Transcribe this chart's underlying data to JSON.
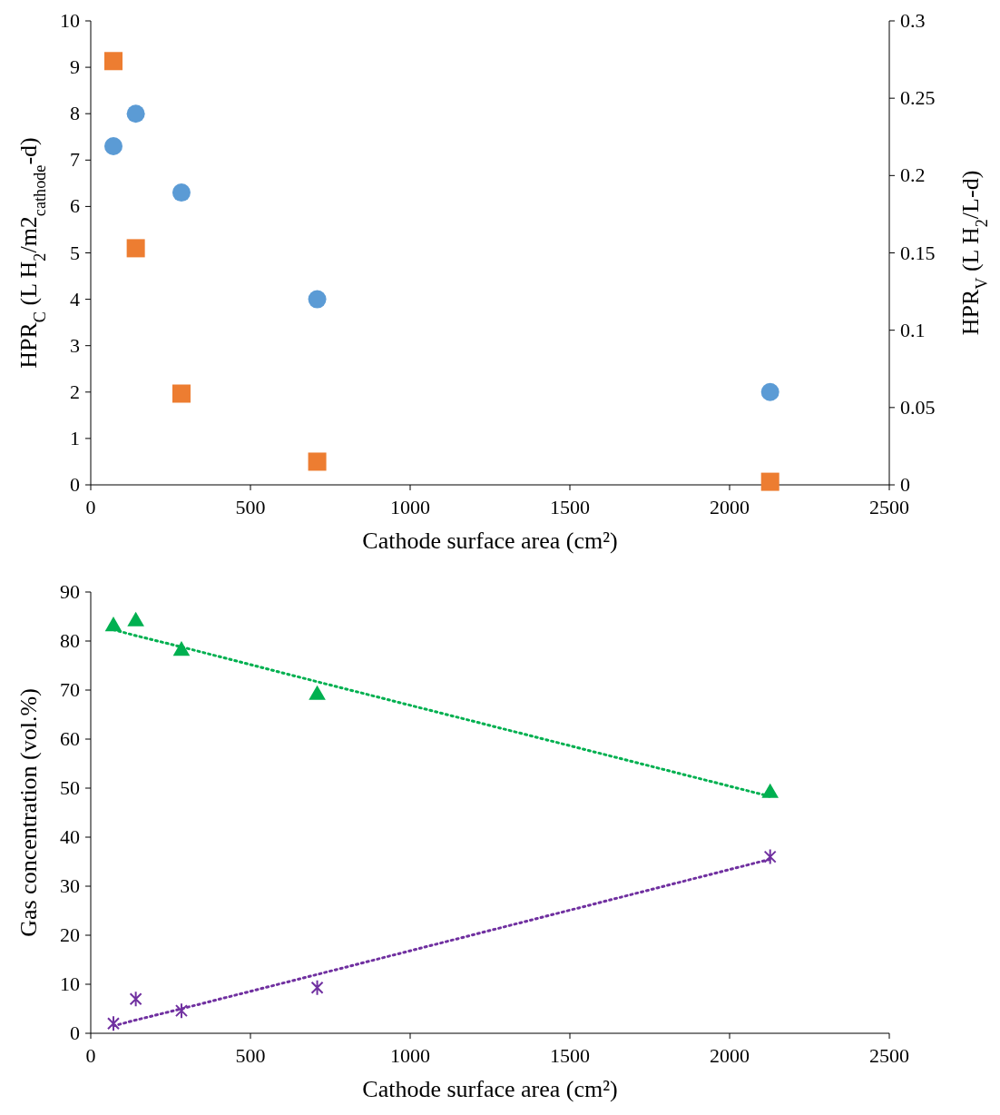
{
  "chart_data": [
    {
      "type": "scatter",
      "xlabel": "Cathode surface area (cm²)",
      "ylabel": "HPR$_{C}$ (L H$_{2}$/m2$_{cathode}$-d)",
      "y2label": "HPR$_{V}$ (L H$_{2}$/L-d)",
      "x": [
        71,
        141,
        284,
        709,
        2127
      ],
      "xlim": [
        0,
        2500
      ],
      "xticks": [
        0,
        500,
        1000,
        1500,
        2000,
        2500
      ],
      "ylim": [
        0,
        10
      ],
      "yticks": [
        0,
        1,
        2,
        3,
        4,
        5,
        6,
        7,
        8,
        9,
        10
      ],
      "y2lim": [
        0,
        0.3
      ],
      "y2ticks": [
        0,
        0.05,
        0.1,
        0.15,
        0.2,
        0.25,
        0.3
      ],
      "grid": false,
      "series": [
        {
          "color": "#5b9bd5",
          "marker": "circle",
          "values": [
            7.3,
            8.0,
            6.3,
            4.0,
            2.0
          ]
        },
        {
          "color": "#ed7d31",
          "marker": "square",
          "axis": "y2",
          "values": [
            0.274,
            0.153,
            0.059,
            0.015,
            0.002
          ]
        }
      ]
    },
    {
      "type": "scatter",
      "xlabel": "Cathode surface area (cm²)",
      "ylabel": "Gas concentration (vol.%)",
      "x": [
        71,
        141,
        284,
        709,
        2127
      ],
      "xlim": [
        0,
        2500
      ],
      "xticks": [
        0,
        500,
        1000,
        1500,
        2000,
        2500
      ],
      "ylim": [
        0,
        90
      ],
      "yticks": [
        0,
        10,
        20,
        30,
        40,
        50,
        60,
        70,
        80,
        90
      ],
      "grid": false,
      "series": [
        {
          "color": "#00b050",
          "marker": "triangle",
          "values": [
            83,
            84,
            78,
            69,
            49
          ]
        },
        {
          "color": "#7030a0",
          "marker": "cross",
          "values": [
            2,
            7,
            4.6,
            9.3,
            36
          ]
        },
        {
          "type": "line",
          "color": "#00b050",
          "marker": "none",
          "line_style": "dotted",
          "values": [
            82.3,
            81.1,
            78.8,
            71.7,
            48.3
          ]
        },
        {
          "type": "line",
          "color": "#7030a0",
          "marker": "none",
          "line_style": "dotted",
          "values": [
            1.5,
            2.7,
            5.0,
            12.0,
            35.5
          ]
        }
      ]
    }
  ]
}
